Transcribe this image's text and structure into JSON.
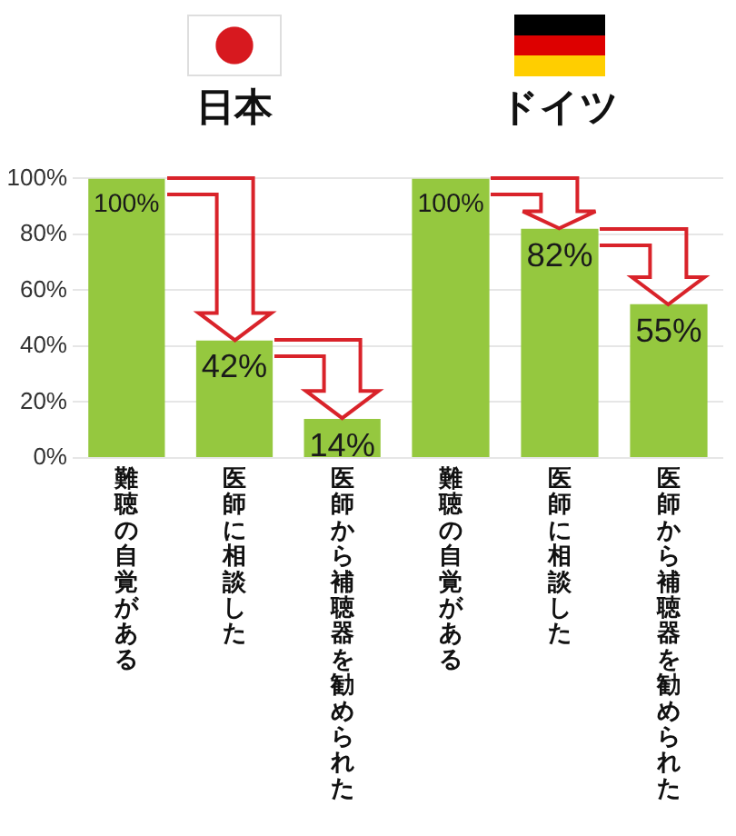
{
  "chart_data": [
    {
      "type": "bar",
      "title": "日本",
      "categories": [
        "難聴の自覚がある",
        "医師に相談した",
        "医師から補聴器を勧められた"
      ],
      "values": [
        100,
        42,
        14
      ],
      "value_labels": [
        "100%",
        "42%",
        "14%"
      ],
      "color": "#95c83f",
      "ylim": [
        0,
        100
      ],
      "yticks": [
        {
          "value": 0,
          "label": "0%"
        },
        {
          "value": 20,
          "label": "20%"
        },
        {
          "value": 40,
          "label": "40%"
        },
        {
          "value": 60,
          "label": "60%"
        },
        {
          "value": 80,
          "label": "80%"
        },
        {
          "value": 100,
          "label": "100%"
        }
      ],
      "grid": "y"
    },
    {
      "type": "bar",
      "title": "ドイツ",
      "categories": [
        "難聴の自覚がある",
        "医師に相談した",
        "医師から補聴器を勧められた"
      ],
      "values": [
        100,
        82,
        55
      ],
      "value_labels": [
        "100%",
        "82%",
        "55%"
      ],
      "color": "#95c83f",
      "ylim": [
        0,
        100
      ],
      "yticks": [
        0,
        20,
        40,
        60,
        80,
        100
      ],
      "grid": "y",
      "tick_labels": "x"
    }
  ]
}
